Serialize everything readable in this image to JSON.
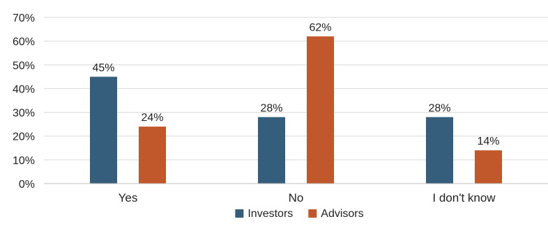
{
  "chart_data": {
    "type": "bar",
    "title": "",
    "xlabel": "",
    "ylabel": "",
    "categories": [
      "Yes",
      "No",
      "I don't know"
    ],
    "series": [
      {
        "name": "Investors",
        "color": "#355e7d",
        "values": [
          45,
          28,
          28
        ],
        "labels": [
          "45%",
          "28%",
          "28%"
        ]
      },
      {
        "name": "Advisors",
        "color": "#c0582b",
        "values": [
          24,
          62,
          14
        ],
        "labels": [
          "24%",
          "62%",
          "14%"
        ]
      }
    ],
    "ylim": [
      0,
      70
    ],
    "yticks": [
      0,
      10,
      20,
      30,
      40,
      50,
      60,
      70
    ],
    "ytick_labels": [
      "0%",
      "10%",
      "20%",
      "30%",
      "40%",
      "50%",
      "60%",
      "70%"
    ],
    "grid": true,
    "legend_position": "bottom",
    "gridline_color": "#d9d9d9",
    "axis_color": "#bfbfbf"
  }
}
